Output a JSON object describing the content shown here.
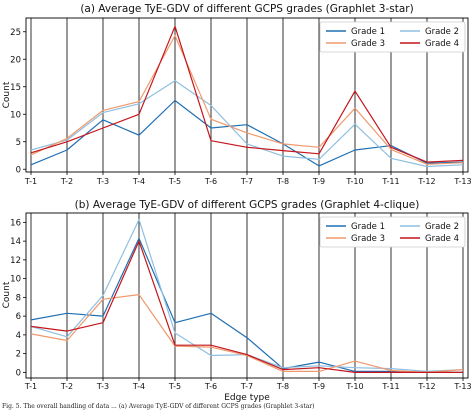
{
  "caption": "Fig. 5. The overall handling of data ... (a) Average TyE-GDV of different GCPS grades (Graphlet 3-star)",
  "chart_data": [
    {
      "type": "line",
      "title": "(a) Average TyE-GDV of different GCPS grades (Graphlet 3-star)",
      "xlabel": "",
      "ylabel": "Count",
      "categories": [
        "T-1",
        "T-2",
        "T-3",
        "T-4",
        "T-5",
        "T-6",
        "T-7",
        "T-8",
        "T-9",
        "T-10",
        "T-11",
        "T-12",
        "T-13"
      ],
      "ylim": [
        -0.5,
        27.5
      ],
      "yticks": [
        0,
        5,
        10,
        15,
        20,
        25
      ],
      "grid": "vertical",
      "legend": "top-right",
      "series": [
        {
          "name": "Grade 1",
          "color": "#1f6fb4",
          "values": [
            0.8,
            3.5,
            9.0,
            6.2,
            12.5,
            7.5,
            8.1,
            4.6,
            0.6,
            3.5,
            4.3,
            1.1,
            1.3
          ]
        },
        {
          "name": "Grade 2",
          "color": "#8fbfe0",
          "values": [
            3.5,
            5.3,
            10.3,
            11.9,
            16.1,
            11.6,
            4.6,
            2.4,
            1.8,
            8.2,
            2.0,
            0.5,
            0.8
          ]
        },
        {
          "name": "Grade 3",
          "color": "#ef9a6d",
          "values": [
            2.6,
            5.6,
            10.7,
            12.3,
            24.3,
            9.1,
            6.6,
            4.6,
            4.0,
            11.1,
            3.6,
            0.9,
            1.2
          ]
        },
        {
          "name": "Grade 4",
          "color": "#c4161c",
          "values": [
            3.0,
            5.0,
            7.5,
            10.0,
            26.0,
            5.2,
            4.0,
            3.4,
            2.8,
            14.2,
            4.0,
            1.3,
            1.6
          ]
        }
      ]
    },
    {
      "type": "line",
      "title": "(b) Average TyE-GDV of different GCPS grades (Graphlet 4-clique)",
      "xlabel": "Edge type",
      "ylabel": "Count",
      "categories": [
        "T-1",
        "T-2",
        "T-3",
        "T-4",
        "T-5",
        "T-6",
        "T-7",
        "T-8",
        "T-9",
        "T-10",
        "T-11",
        "T-12",
        "T-13"
      ],
      "ylim": [
        -0.6,
        17
      ],
      "yticks": [
        0,
        2,
        4,
        6,
        8,
        10,
        12,
        14,
        16
      ],
      "grid": "vertical",
      "legend": "top-right",
      "series": [
        {
          "name": "Grade 1",
          "color": "#1f6fb4",
          "values": [
            5.6,
            6.3,
            6.0,
            14.3,
            5.3,
            6.3,
            3.7,
            0.4,
            1.1,
            0.1,
            0.1,
            0.0,
            0.0
          ]
        },
        {
          "name": "Grade 2",
          "color": "#8fbfe0",
          "values": [
            4.9,
            3.8,
            8.2,
            16.3,
            4.2,
            1.8,
            1.9,
            0.5,
            0.7,
            0.5,
            0.4,
            0.1,
            0.3
          ]
        },
        {
          "name": "Grade 3",
          "color": "#ef9a6d",
          "values": [
            4.1,
            3.4,
            7.8,
            8.3,
            2.8,
            2.7,
            1.8,
            0.1,
            0.1,
            1.2,
            0.2,
            0.0,
            0.3
          ]
        },
        {
          "name": "Grade 4",
          "color": "#c4161c",
          "values": [
            4.9,
            4.4,
            5.3,
            14.0,
            2.9,
            2.9,
            1.9,
            0.3,
            0.5,
            0.0,
            0.0,
            0.0,
            0.0
          ]
        }
      ]
    }
  ]
}
